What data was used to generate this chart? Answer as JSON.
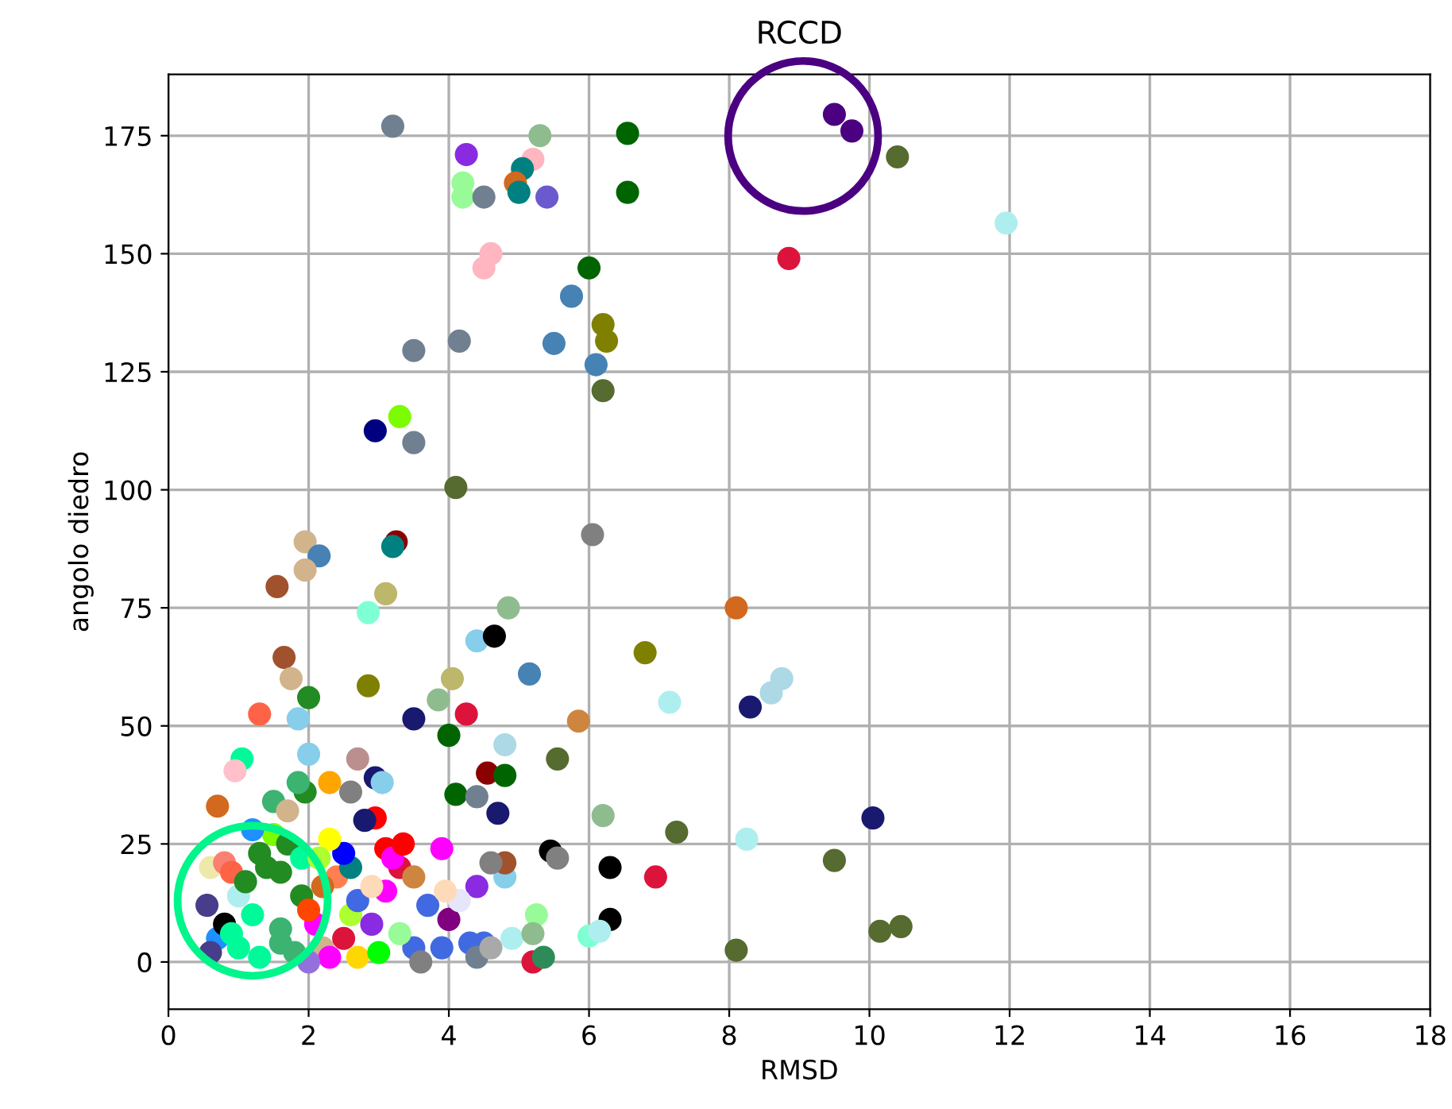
{
  "chart_data": {
    "type": "scatter",
    "title": "RCCD",
    "xlabel": "RMSD",
    "ylabel": "angolo diedro",
    "xlim": [
      0,
      18
    ],
    "xticks": [
      0,
      2,
      4,
      6,
      8,
      10,
      12,
      14,
      16,
      18
    ],
    "ylim": [
      -10,
      188
    ],
    "yticks": [
      0,
      25,
      50,
      75,
      100,
      125,
      150,
      175
    ],
    "grid": true,
    "marker": "circle",
    "series": [
      {
        "x": [
          3.2,
          5.3,
          6.55,
          9.5,
          9.75,
          10.4,
          4.25,
          5.2,
          5.05,
          4.2,
          4.2,
          4.95,
          5.0,
          4.5,
          5.4,
          6.55,
          11.95,
          4.6,
          4.5,
          8.85,
          6.0,
          5.75,
          6.2,
          6.25,
          5.5,
          3.5,
          4.15,
          6.1,
          6.2,
          3.3,
          2.95,
          3.5,
          4.1,
          6.05,
          3.25,
          3.2,
          1.95,
          2.15,
          1.95,
          1.55,
          3.1,
          2.85,
          4.85,
          8.1,
          4.4,
          4.65,
          6.8,
          1.65,
          1.75,
          2.85,
          4.05,
          8.75,
          8.6,
          8.3,
          7.15,
          2.0,
          3.85,
          1.3,
          1.85,
          3.5,
          4.25,
          5.15,
          5.85,
          4.8,
          4.0,
          1.05,
          0.95,
          2.0,
          2.7,
          5.55,
          4.55,
          4.8,
          2.95,
          4.1,
          4.4,
          0.7,
          1.5,
          1.95,
          6.2,
          10.05,
          7.25,
          8.25,
          9.5,
          2.95,
          4.7,
          5.45,
          5.55,
          6.3,
          6.95,
          6.3,
          6.0,
          6.15,
          8.1,
          10.15,
          10.45,
          5.25,
          5.2,
          4.8,
          4.8,
          4.6,
          4.4,
          0.6,
          0.8,
          0.9,
          0.55,
          0.7,
          0.6,
          0.8,
          1.0,
          1.1,
          1.3,
          1.5,
          1.7,
          1.4,
          1.6,
          1.9,
          1.9,
          1.2,
          1.0,
          1.3,
          1.6,
          1.8,
          1.6,
          0.9,
          2.2,
          2.3,
          2.1,
          2.6,
          2.5,
          2.7,
          2.9,
          2.4,
          2.6,
          2.2,
          2.5,
          2.3,
          3.1,
          3.3,
          3.1,
          3.2,
          3.5,
          3.7,
          3.5,
          3.3,
          3.9,
          4.0,
          4.3,
          4.5,
          4.4,
          3.6,
          2.0,
          2.7,
          3.0,
          4.15,
          3.9,
          2.8,
          2.6,
          3.05,
          2.3,
          1.85,
          1.2,
          1.7,
          3.35,
          4.6,
          4.9,
          5.2,
          5.35,
          3.95,
          2.0,
          2.9,
          2.15
        ],
        "values": [
          177,
          175,
          175.5,
          179.5,
          176,
          170.5,
          171,
          170,
          168,
          165,
          162,
          165,
          163,
          162,
          162,
          163,
          156.5,
          150,
          147,
          149,
          147,
          141,
          135,
          131.5,
          131,
          129.5,
          131.5,
          126.5,
          121,
          115.5,
          112.5,
          110,
          100.5,
          90.5,
          89,
          88,
          89,
          86,
          83,
          79.5,
          78,
          74,
          75,
          75,
          68,
          69,
          65.5,
          64.5,
          60,
          58.5,
          60,
          60,
          57,
          54,
          55,
          56,
          55.5,
          52.5,
          51.5,
          51.5,
          52.5,
          61,
          51,
          46,
          48,
          43,
          40.5,
          44,
          43,
          43,
          40,
          39.5,
          39,
          35.5,
          35,
          33,
          34,
          36,
          31,
          30.5,
          27.5,
          26,
          21.5,
          30.5,
          31.5,
          23.5,
          22,
          20,
          18,
          9,
          5.5,
          6.5,
          2.5,
          6.5,
          7.5,
          10,
          0,
          18,
          21,
          21,
          16,
          20,
          21,
          19,
          12,
          5,
          2,
          8,
          14,
          17,
          23,
          27,
          25,
          20,
          19,
          22,
          14,
          10,
          3,
          1,
          4,
          2,
          7,
          6,
          3,
          1,
          8,
          10,
          5,
          13,
          8,
          18,
          20,
          16,
          23,
          26,
          15,
          20,
          24,
          22,
          18,
          12,
          3,
          6,
          3,
          9,
          4,
          4,
          1,
          0,
          0,
          1,
          2,
          13,
          24,
          30,
          36,
          38,
          38,
          38,
          28,
          32,
          25,
          3,
          5,
          6,
          1,
          15,
          11,
          16,
          22
        ],
        "colors": [
          "#708090",
          "#8fbc8f",
          "#006400",
          "#4b0082",
          "#4b0082",
          "#556b2f",
          "#8a2be2",
          "#ffb6c1",
          "#008080",
          "#98fb98",
          "#98fb98",
          "#d2691e",
          "#008080",
          "#708090",
          "#6a5acd",
          "#006400",
          "#afeeee",
          "#ffb6c1",
          "#ffb6c1",
          "#dc143c",
          "#006400",
          "#4682b4",
          "#808000",
          "#808000",
          "#4682b4",
          "#708090",
          "#708090",
          "#4682b4",
          "#556b2f",
          "#7cfc00",
          "#000080",
          "#708090",
          "#556b2f",
          "#808080",
          "#8b0000",
          "#008080",
          "#d2b48c",
          "#4682b4",
          "#d2b48c",
          "#a0522d",
          "#bdb76b",
          "#7fffd4",
          "#8fbc8f",
          "#d2691e",
          "#87ceeb",
          "#000000",
          "#808000",
          "#a0522d",
          "#d2b48c",
          "#808000",
          "#bdb76b",
          "#add8e6",
          "#add8e6",
          "#191970",
          "#afeeee",
          "#228b22",
          "#8fbc8f",
          "#ff6347",
          "#87ceeb",
          "#191970",
          "#dc143c",
          "#4682b4",
          "#cd853f",
          "#add8e6",
          "#006400",
          "#00fa9a",
          "#ffc0cb",
          "#87ceeb",
          "#bc8f8f",
          "#556b2f",
          "#8b0000",
          "#006400",
          "#191970",
          "#006400",
          "#708090",
          "#d2691e",
          "#3cb371",
          "#228b22",
          "#8fbc8f",
          "#191970",
          "#556b2f",
          "#afeeee",
          "#556b2f",
          "#ff0000",
          "#191970",
          "#000000",
          "#808080",
          "#000000",
          "#dc143c",
          "#000000",
          "#7fffd4",
          "#afeeee",
          "#556b2f",
          "#556b2f",
          "#556b2f",
          "#98fb98",
          "#dc143c",
          "#87ceeb",
          "#a0522d",
          "#808080",
          "#8a2be2",
          "#eee8aa",
          "#fa8072",
          "#ff6347",
          "#483d8b",
          "#1e90ff",
          "#483d8b",
          "#000000",
          "#afeeee",
          "#228b22",
          "#228b22",
          "#7cfc00",
          "#228b22",
          "#228b22",
          "#228b22",
          "#00fa9a",
          "#228b22",
          "#00fa9a",
          "#00fa9a",
          "#00fa9a",
          "#3cb371",
          "#3cb371",
          "#3cb371",
          "#00fa9a",
          "#d2b48c",
          "#ff00ff",
          "#ff00ff",
          "#adff2f",
          "#dc143c",
          "#4169e1",
          "#8a2be2",
          "#ff7f50",
          "#008080",
          "#d2691e",
          "#0000ff",
          "#ffff00",
          "#ff00ff",
          "#dc143c",
          "#ff0000",
          "#ff00ff",
          "#cd853f",
          "#4169e1",
          "#4169e1",
          "#98fb98",
          "#4169e1",
          "#800080",
          "#4169e1",
          "#4169e1",
          "#708090",
          "#808080",
          "#9370db",
          "#ffd700",
          "#00ff00",
          "#e6e6fa",
          "#ff00ff",
          "#191970",
          "#808080",
          "#87ceeb",
          "#ffa500",
          "#3cb371",
          "#1e90ff",
          "#d2b48c",
          "#ff0000",
          "#a9a9a9",
          "#afeeee",
          "#8fbc8f",
          "#2e8b57",
          "#ffdab9",
          "#ff4500",
          "#ffdab9",
          "#adff2f"
        ]
      }
    ]
  }
}
